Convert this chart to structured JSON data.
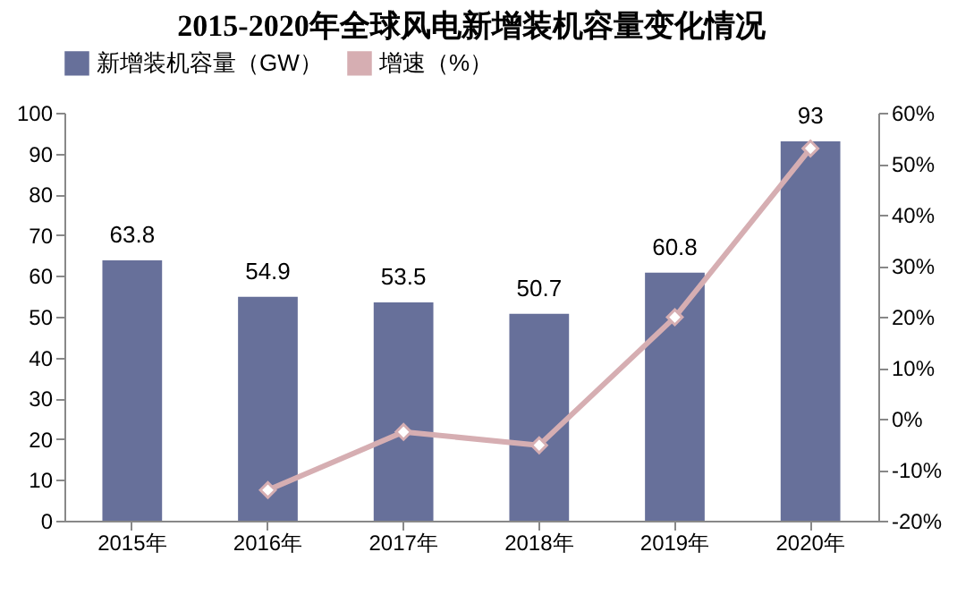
{
  "chart_data": {
    "type": "bar",
    "title": "2015-2020年全球风电新增装机容量变化情况",
    "categories": [
      "2015年",
      "2016年",
      "2017年",
      "2018年",
      "2019年",
      "2020年"
    ],
    "series": [
      {
        "name": "新增装机容量（GW）",
        "color": "#67709a",
        "values": [
          63.8,
          54.9,
          53.5,
          50.7,
          60.8,
          93
        ],
        "value_labels": [
          "63.8",
          "54.9",
          "53.5",
          "50.7",
          "60.8",
          "93"
        ]
      },
      {
        "name": "增速（%）",
        "type": "line",
        "axis": "y2",
        "color": "#d6aeb2",
        "marker": "diamond",
        "values": [
          null,
          -14,
          -2.6,
          -5.2,
          19.9,
          53
        ]
      }
    ],
    "ylim": [
      0,
      100
    ],
    "yticks": [
      0,
      10,
      20,
      30,
      40,
      50,
      60,
      70,
      80,
      90,
      100
    ],
    "y2lim": [
      -20,
      60
    ],
    "y2ticks": [
      {
        "value": -20,
        "label": "-20%"
      },
      {
        "value": -10,
        "label": "-10%"
      },
      {
        "value": 0,
        "label": "0%"
      },
      {
        "value": 10,
        "label": "10%"
      },
      {
        "value": 20,
        "label": "20%"
      },
      {
        "value": 30,
        "label": "30%"
      },
      {
        "value": 40,
        "label": "40%"
      },
      {
        "value": 50,
        "label": "50%"
      },
      {
        "value": 60,
        "label": "60%"
      }
    ],
    "legend": "top",
    "grid": false
  }
}
